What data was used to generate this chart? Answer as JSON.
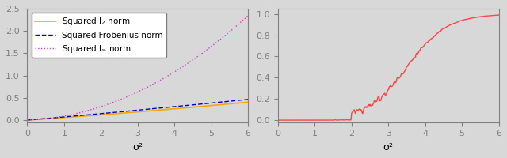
{
  "left_xlim": [
    0,
    6
  ],
  "left_ylim": [
    -0.05,
    2.5
  ],
  "left_yticks": [
    0.0,
    0.5,
    1.0,
    1.5,
    2.0,
    2.5
  ],
  "left_xticks": [
    0,
    1,
    2,
    3,
    4,
    5,
    6
  ],
  "right_xlim": [
    0,
    6
  ],
  "right_ylim": [
    -0.02,
    1.05
  ],
  "right_yticks": [
    0.0,
    0.2,
    0.4,
    0.6,
    0.8,
    1.0
  ],
  "right_xticks": [
    0,
    1,
    2,
    3,
    4,
    5,
    6
  ],
  "xlabel": "σ²",
  "legend_labels": [
    "Squared l₂ norm",
    "Squared Frobenius norm",
    "Squared l∞ norm"
  ],
  "color_l2": "#FFA500",
  "color_frob": "#0000CD",
  "color_linf": "#CC44CC",
  "color_right": "#FF4444",
  "bg_color": "#D8D8D8",
  "fontsize_tick": 8,
  "fontsize_label": 9,
  "fontsize_legend": 7.5
}
